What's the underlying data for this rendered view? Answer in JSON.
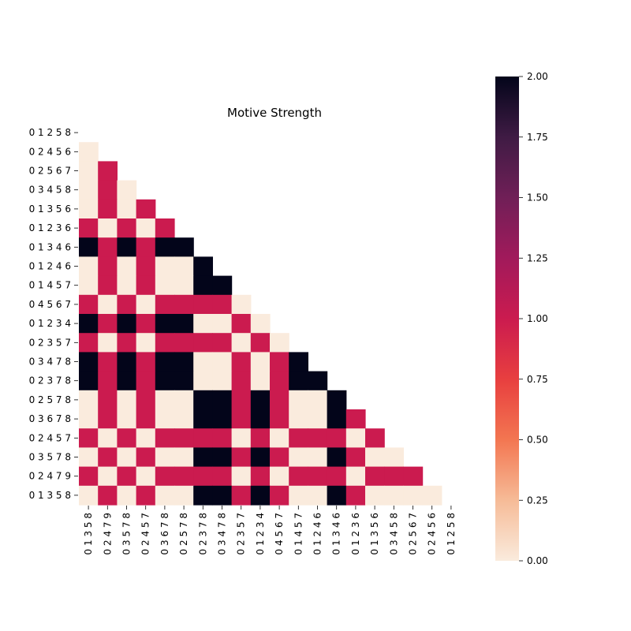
{
  "chart_data": {
    "type": "heatmap",
    "title": "Motive Strength",
    "row_labels": [
      "0 1 2 5 8",
      "0 2 4 5 6",
      "0 2 5 6 7",
      "0 3 4 5 8",
      "0 1 3 5 6",
      "0 1 2 3 6",
      "0 1 3 4 6",
      "0 1 2 4 6",
      "0 1 4 5 7",
      "0 4 5 6 7",
      "0 1 2 3 4",
      "0 2 3 5 7",
      "0 3 4 7 8",
      "0 2 3 7 8",
      "0 2 5 7 8",
      "0 3 6 7 8",
      "0 2 4 5 7",
      "0 3 5 7 8",
      "0 2 4 7 9",
      "0 1 3 5 8"
    ],
    "col_labels": [
      "0 1 3 5 8",
      "0 2 4 7 9",
      "0 3 5 7 8",
      "0 2 4 5 7",
      "0 3 6 7 8",
      "0 2 5 7 8",
      "0 2 3 7 8",
      "0 3 4 7 8",
      "0 2 3 5 7",
      "0 1 2 3 4",
      "0 4 5 6 7",
      "0 1 4 5 7",
      "0 1 2 4 6",
      "0 1 3 4 6",
      "0 1 2 3 6",
      "0 1 3 5 6",
      "0 3 4 5 8",
      "0 2 5 6 7",
      "0 2 4 5 6",
      "0 1 2 5 8"
    ],
    "values": [
      [],
      [
        0
      ],
      [
        0,
        1
      ],
      [
        0,
        1,
        0
      ],
      [
        0,
        1,
        0,
        1
      ],
      [
        1,
        0,
        1,
        0,
        1
      ],
      [
        2,
        1,
        2,
        1,
        2,
        2
      ],
      [
        0,
        1,
        0,
        1,
        0,
        0,
        2
      ],
      [
        0,
        1,
        0,
        1,
        0,
        0,
        2,
        2
      ],
      [
        1,
        0,
        1,
        0,
        1,
        1,
        1,
        1,
        0
      ],
      [
        2,
        1,
        2,
        1,
        2,
        2,
        0,
        0,
        1,
        0
      ],
      [
        1,
        0,
        1,
        0,
        1,
        1,
        1,
        1,
        0,
        1,
        0
      ],
      [
        2,
        1,
        2,
        1,
        2,
        2,
        0,
        0,
        1,
        0,
        1,
        2
      ],
      [
        2,
        1,
        2,
        1,
        2,
        2,
        0,
        0,
        1,
        0,
        1,
        2,
        2
      ],
      [
        0,
        1,
        0,
        1,
        0,
        0,
        2,
        2,
        1,
        2,
        1,
        0,
        0,
        2
      ],
      [
        0,
        1,
        0,
        1,
        0,
        0,
        2,
        2,
        1,
        2,
        1,
        0,
        0,
        2,
        1
      ],
      [
        1,
        0,
        1,
        0,
        1,
        1,
        1,
        1,
        0,
        1,
        0,
        1,
        1,
        1,
        0,
        1
      ],
      [
        0,
        1,
        0,
        1,
        0,
        0,
        2,
        2,
        1,
        2,
        1,
        0,
        0,
        2,
        1,
        0,
        0
      ],
      [
        1,
        0,
        1,
        0,
        1,
        1,
        1,
        1,
        0,
        1,
        0,
        1,
        1,
        1,
        0,
        1,
        1,
        1
      ],
      [
        0,
        1,
        0,
        1,
        0,
        0,
        2,
        2,
        1,
        2,
        1,
        0,
        0,
        2,
        1,
        0,
        0,
        0,
        0
      ]
    ],
    "vmin": 0,
    "vmax": 2,
    "colorbar_ticks": [
      "0.00",
      "0.25",
      "0.50",
      "0.75",
      "1.00",
      "1.25",
      "1.50",
      "1.75",
      "2.00"
    ],
    "colors": {
      "low": "#faebdd",
      "mid": "#cb1b4f",
      "high": "#03051a"
    }
  }
}
